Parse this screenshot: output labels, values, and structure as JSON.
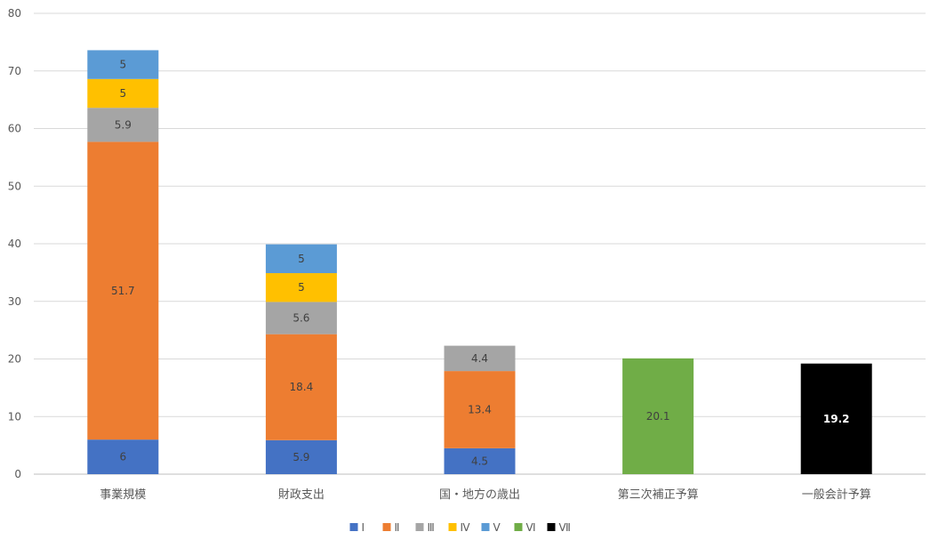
{
  "chart_data": {
    "type": "bar",
    "stacked": true,
    "categories": [
      "事業規模",
      "財政支出",
      "国・地方の歳出",
      "第三次補正予算",
      "一般会計予算"
    ],
    "ylim": [
      0,
      80
    ],
    "yticks": [
      0,
      10,
      20,
      30,
      40,
      50,
      60,
      70,
      80
    ],
    "grid": true,
    "legend_position": "bottom",
    "series": [
      {
        "name": "Ⅰ",
        "color": "#4472C4",
        "label_color": "#404040",
        "values": [
          6,
          5.9,
          4.5,
          null,
          null
        ]
      },
      {
        "name": "Ⅱ",
        "color": "#ED7D31",
        "label_color": "#404040",
        "values": [
          51.7,
          18.4,
          13.4,
          null,
          null
        ]
      },
      {
        "name": "Ⅲ",
        "color": "#A5A5A5",
        "label_color": "#404040",
        "values": [
          5.9,
          5.6,
          4.4,
          null,
          null
        ]
      },
      {
        "name": "Ⅳ",
        "color": "#FFC000",
        "label_color": "#404040",
        "values": [
          5,
          5,
          null,
          null,
          null
        ]
      },
      {
        "name": "Ⅴ",
        "color": "#5B9BD5",
        "label_color": "#404040",
        "values": [
          5,
          5,
          null,
          null,
          null
        ]
      },
      {
        "name": "Ⅵ",
        "color": "#70AD47",
        "label_color": "#404040",
        "values": [
          null,
          null,
          null,
          20.1,
          null
        ]
      },
      {
        "name": "Ⅶ",
        "color": "#000000",
        "label_color": "#FFFFFF",
        "values": [
          null,
          null,
          null,
          null,
          19.2
        ]
      }
    ]
  }
}
